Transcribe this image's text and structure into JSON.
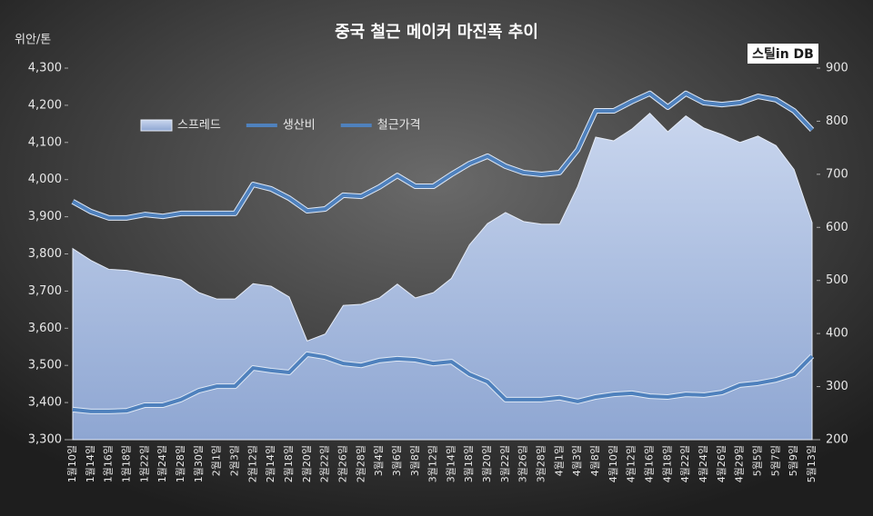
{
  "chart_data": {
    "type": "area_line",
    "title": "중국 철근 메이커 마진폭 추이",
    "y_axis_label": "위안/톤",
    "logo": "스틸in DB",
    "categories": [
      "1월10일",
      "1월14일",
      "1월16일",
      "1월18일",
      "1월22일",
      "1월24일",
      "1월28일",
      "1월30일",
      "2월1일",
      "2월3일",
      "2월12일",
      "2월14일",
      "2월18일",
      "2월20일",
      "2월22일",
      "2월26일",
      "2월28일",
      "3월4일",
      "3월6일",
      "3월8일",
      "3월12일",
      "3월14일",
      "3월18일",
      "3월20일",
      "3월22일",
      "3월26일",
      "3월28일",
      "4월1일",
      "4월3일",
      "4월8일",
      "4월10일",
      "4월12일",
      "4월16일",
      "4월18일",
      "4월22일",
      "4월24일",
      "4월26일",
      "4월29일",
      "5월5일",
      "5월7일",
      "5월9일",
      "5월13일"
    ],
    "series": [
      {
        "name": "스프레드",
        "color": "#b4c6e7",
        "axis": "y2",
        "values": [
          560,
          538,
          521,
          519,
          513,
          508,
          501,
          477,
          465,
          465,
          494,
          489,
          469,
          386,
          399,
          453,
          455,
          467,
          493,
          467,
          477,
          504,
          567,
          607,
          628,
          611,
          606,
          606,
          677,
          770,
          763,
          785,
          815,
          780,
          810,
          787,
          775,
          760,
          772,
          754,
          709,
          609
        ]
      },
      {
        "name": "생산비",
        "color": "#4f81bd",
        "values": [
          3381,
          3376,
          3376,
          3378,
          3393,
          3393,
          3408,
          3432,
          3444,
          3444,
          3493,
          3486,
          3481,
          3530,
          3522,
          3505,
          3500,
          3513,
          3518,
          3515,
          3505,
          3510,
          3476,
          3456,
          3408,
          3408,
          3408,
          3413,
          3403,
          3415,
          3422,
          3425,
          3417,
          3415,
          3422,
          3420,
          3427,
          3447,
          3452,
          3461,
          3476,
          3525
        ]
      },
      {
        "name": "철근가격",
        "color": "#4f81bd",
        "values": [
          3941,
          3914,
          3897,
          3897,
          3906,
          3901,
          3909,
          3909,
          3909,
          3909,
          3987,
          3975,
          3950,
          3916,
          3921,
          3958,
          3955,
          3980,
          4011,
          3982,
          3982,
          4014,
          4043,
          4063,
          4036,
          4019,
          4014,
          4019,
          4080,
          4185,
          4185,
          4210,
          4232,
          4195,
          4232,
          4207,
          4202,
          4207,
          4224,
          4215,
          4185,
          4134
        ]
      }
    ],
    "ylim": [
      3300,
      4300
    ],
    "yticks": [
      {
        "value": 3300,
        "label": "3,300"
      },
      {
        "value": 3400,
        "label": "3,400"
      },
      {
        "value": 3500,
        "label": "3,500"
      },
      {
        "value": 3600,
        "label": "3,600"
      },
      {
        "value": 3700,
        "label": "3,700"
      },
      {
        "value": 3800,
        "label": "3,800"
      },
      {
        "value": 3900,
        "label": "3,900"
      },
      {
        "value": 4000,
        "label": "4,000"
      },
      {
        "value": 4100,
        "label": "4,100"
      },
      {
        "value": 4200,
        "label": "4,200"
      },
      {
        "value": 4300,
        "label": "4,300"
      }
    ],
    "y2lim": [
      200,
      900
    ],
    "y2ticks": [
      200,
      300,
      400,
      500,
      600,
      700,
      800,
      900
    ],
    "legend": "upper left"
  }
}
